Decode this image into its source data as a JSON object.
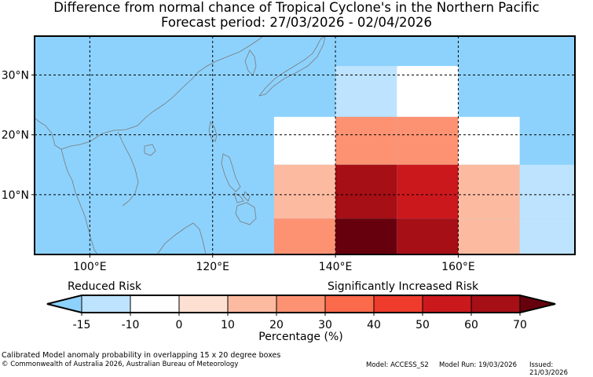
{
  "title_line1": "Difference from normal chance of Tropical Cyclone's in the Northern Pacific",
  "title_line2": "Forecast period: 27/03/2026 - 02/04/2026",
  "map": {
    "lon_range": [
      91,
      179
    ],
    "lat_range": [
      0,
      36.5
    ],
    "ocean_color": "#8dd2fd",
    "x_ticks": [
      "100°E",
      "120°E",
      "140°E",
      "160°E"
    ],
    "x_tick_values": [
      100,
      120,
      140,
      160
    ],
    "y_ticks": [
      "30°N",
      "20°N",
      "10°N"
    ],
    "y_tick_values": [
      30,
      20,
      10
    ],
    "cells": [
      {
        "lon": [
          140,
          150
        ],
        "lat": [
          30,
          31.5
        ],
        "category": "-15 to -10"
      },
      {
        "lon": [
          150,
          160
        ],
        "lat": [
          30,
          31.5
        ],
        "category": "-10 to 0"
      },
      {
        "lon": [
          140,
          150
        ],
        "lat": [
          23,
          30
        ],
        "category": "-15 to -10"
      },
      {
        "lon": [
          150,
          160
        ],
        "lat": [
          23,
          30
        ],
        "category": "-10 to 0"
      },
      {
        "lon": [
          130,
          140
        ],
        "lat": [
          15,
          23
        ],
        "category": "-10 to 0"
      },
      {
        "lon": [
          140,
          150
        ],
        "lat": [
          15,
          23
        ],
        "category": "20 to 30"
      },
      {
        "lon": [
          150,
          160
        ],
        "lat": [
          15,
          23
        ],
        "category": "20 to 30"
      },
      {
        "lon": [
          160,
          170
        ],
        "lat": [
          15,
          23
        ],
        "category": "-10 to 0"
      },
      {
        "lon": [
          130,
          140
        ],
        "lat": [
          6,
          15
        ],
        "category": "10 to 20"
      },
      {
        "lon": [
          140,
          150
        ],
        "lat": [
          6,
          15
        ],
        "category": "60 to 70"
      },
      {
        "lon": [
          150,
          160
        ],
        "lat": [
          6,
          15
        ],
        "category": "50 to 60"
      },
      {
        "lon": [
          160,
          170
        ],
        "lat": [
          6,
          15
        ],
        "category": "10 to 20"
      },
      {
        "lon": [
          170,
          179
        ],
        "lat": [
          6,
          15
        ],
        "category": "-15 to -10"
      },
      {
        "lon": [
          130,
          140
        ],
        "lat": [
          0,
          6
        ],
        "category": "20 to 30"
      },
      {
        "lon": [
          140,
          150
        ],
        "lat": [
          0,
          6
        ],
        "category": ">70"
      },
      {
        "lon": [
          150,
          160
        ],
        "lat": [
          0,
          6
        ],
        "category": "60 to 70"
      },
      {
        "lon": [
          160,
          170
        ],
        "lat": [
          0,
          6
        ],
        "category": "10 to 20"
      },
      {
        "lon": [
          170,
          179
        ],
        "lat": [
          0,
          6
        ],
        "category": "-15 to -10"
      }
    ]
  },
  "colorbar": {
    "reduced_label": "Reduced Risk",
    "increased_label": "Significantly Increased Risk",
    "xlabel": "Percentage (%)",
    "ticks": [
      "-15",
      "-10",
      "0",
      "10",
      "20",
      "30",
      "40",
      "50",
      "60",
      "70"
    ],
    "below_color": "#8dd2fd",
    "above_color": "#67000d",
    "colors": [
      "#bde3fe",
      "#ffffff",
      "#fde0d2",
      "#fcbba1",
      "#fc9272",
      "#fb6a4a",
      "#ef3b2c",
      "#cb181d",
      "#a50f15"
    ],
    "category_colors": {
      "-15 to -10": "#bde3fe",
      "-10 to 0": "#ffffff",
      "0 to 10": "#fde0d2",
      "10 to 20": "#fcbba1",
      "20 to 30": "#fc9272",
      "30 to 40": "#fb6a4a",
      "40 to 50": "#ef3b2c",
      "50 to 60": "#cb181d",
      "60 to 70": "#a50f15",
      ">70": "#67000d"
    }
  },
  "footer": {
    "note": "Calibrated Model anomaly probability in overlapping 15 x 20 degree boxes",
    "copyright": "© Commonwealth of Australia 2026, Australian Bureau of Meteorology",
    "model": "Model: ACCESS_S2",
    "run": "Model Run: 19/03/2026",
    "issued": "Issued: 21/03/2026"
  }
}
